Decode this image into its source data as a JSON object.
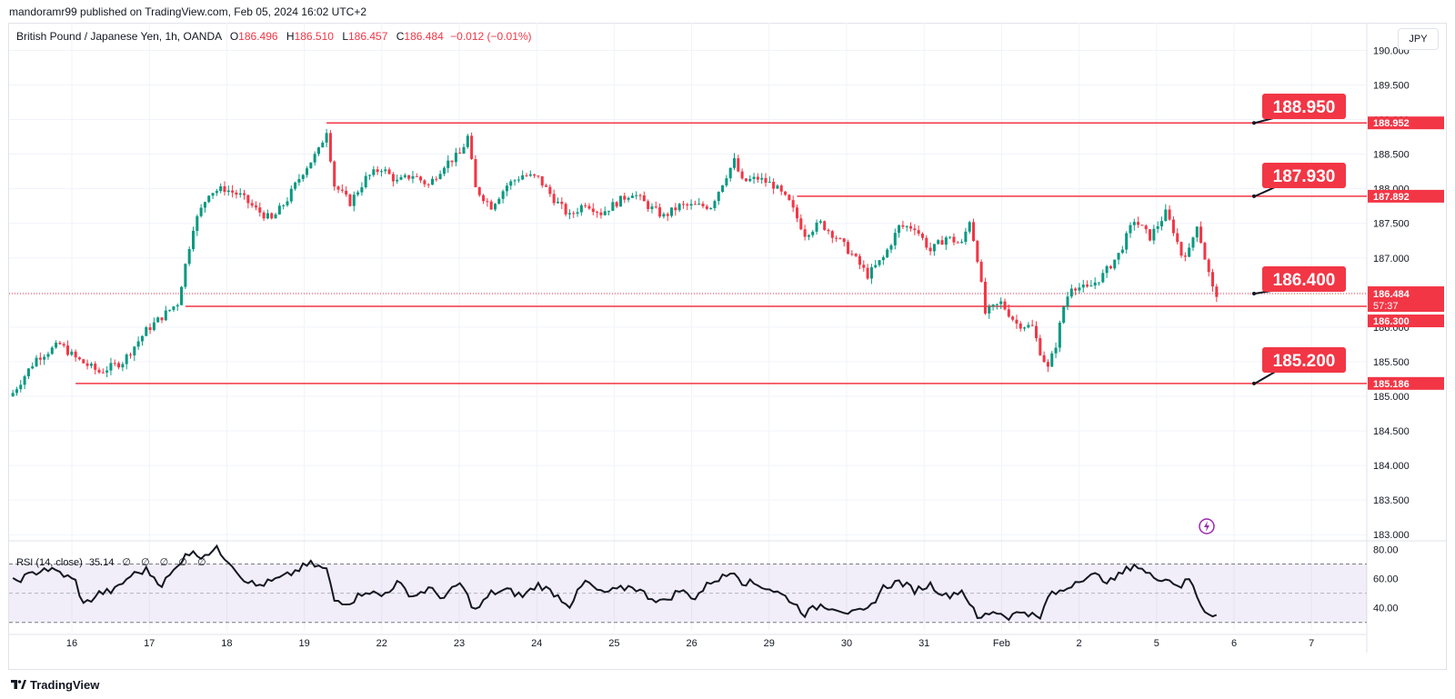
{
  "header": {
    "published_text": "mandoramr99 published on TradingView.com, Feb 05, 2024 16:02 UTC+2"
  },
  "legend": {
    "symbol": "British Pound / Japanese Yen, 1h, OANDA",
    "o_label": "O",
    "o_value": "186.496",
    "h_label": "H",
    "h_value": "186.510",
    "l_label": "L",
    "l_value": "186.457",
    "c_label": "C",
    "c_value": "186.484",
    "change": "−0.012 (−0.01%)"
  },
  "currency_button": "JPY",
  "rsi": {
    "label": "RSI (14, close)",
    "value": "35.14",
    "placeholders": "∅ ∅ ∅ ∅ ∅"
  },
  "footer": {
    "brand": "TradingView"
  },
  "colors": {
    "up": "#089981",
    "down": "#f23645",
    "level": "#f23645",
    "rsi_line": "#131722",
    "rsi_band": "#7e57c2",
    "grid": "#f0f3fa"
  },
  "chart_data": {
    "type": "candlestick",
    "ylim": [
      182.95,
      190.4
    ],
    "y_ticks": [
      "190.000",
      "189.500",
      "189.000",
      "188.500",
      "188.000",
      "187.500",
      "187.000",
      "186.500",
      "186.000",
      "185.500",
      "185.000",
      "184.500",
      "184.000",
      "183.500",
      "183.000"
    ],
    "x_ticks": [
      "16",
      "17",
      "18",
      "19",
      "22",
      "23",
      "24",
      "25",
      "26",
      "29",
      "30",
      "31",
      "Feb",
      "2",
      "5",
      "6",
      "7"
    ],
    "price_labels": {
      "line_1": "188.952",
      "line_2": "187.892",
      "current": "186.484",
      "countdown": "57:37",
      "line_3": "186.300",
      "line_4": "185.186"
    },
    "annotations": [
      "188.950",
      "187.930",
      "186.400",
      "185.200"
    ],
    "close_path": [
      [
        0,
        185.05
      ],
      [
        6,
        185.55
      ],
      [
        12,
        185.75
      ],
      [
        16,
        185.55
      ],
      [
        22,
        185.35
      ],
      [
        28,
        185.5
      ],
      [
        34,
        185.95
      ],
      [
        38,
        186.15
      ],
      [
        42,
        186.35
      ],
      [
        46,
        187.45
      ],
      [
        50,
        187.95
      ],
      [
        54,
        188.0
      ],
      [
        58,
        187.9
      ],
      [
        62,
        187.7
      ],
      [
        66,
        187.55
      ],
      [
        70,
        187.85
      ],
      [
        74,
        188.25
      ],
      [
        78,
        188.55
      ],
      [
        80,
        188.85
      ],
      [
        82,
        188.05
      ],
      [
        86,
        187.8
      ],
      [
        90,
        188.15
      ],
      [
        94,
        188.3
      ],
      [
        98,
        188.1
      ],
      [
        102,
        188.2
      ],
      [
        106,
        188.05
      ],
      [
        110,
        188.35
      ],
      [
        114,
        188.5
      ],
      [
        116,
        188.75
      ],
      [
        118,
        188.0
      ],
      [
        122,
        187.75
      ],
      [
        126,
        188.05
      ],
      [
        130,
        188.2
      ],
      [
        134,
        188.15
      ],
      [
        138,
        187.85
      ],
      [
        142,
        187.6
      ],
      [
        146,
        187.8
      ],
      [
        150,
        187.65
      ],
      [
        154,
        187.8
      ],
      [
        158,
        187.95
      ],
      [
        162,
        187.75
      ],
      [
        166,
        187.6
      ],
      [
        170,
        187.75
      ],
      [
        174,
        187.75
      ],
      [
        178,
        187.75
      ],
      [
        182,
        188.2
      ],
      [
        184,
        188.4
      ],
      [
        186,
        188.1
      ],
      [
        190,
        188.15
      ],
      [
        194,
        188.05
      ],
      [
        198,
        187.8
      ],
      [
        202,
        187.35
      ],
      [
        206,
        187.5
      ],
      [
        210,
        187.3
      ],
      [
        214,
        187.05
      ],
      [
        218,
        186.75
      ],
      [
        222,
        187.0
      ],
      [
        226,
        187.45
      ],
      [
        230,
        187.45
      ],
      [
        234,
        187.1
      ],
      [
        238,
        187.3
      ],
      [
        242,
        187.2
      ],
      [
        244,
        187.55
      ],
      [
        246,
        187.0
      ],
      [
        248,
        186.2
      ],
      [
        252,
        186.35
      ],
      [
        256,
        186.05
      ],
      [
        260,
        186.0
      ],
      [
        262,
        185.65
      ],
      [
        264,
        185.4
      ],
      [
        266,
        185.75
      ],
      [
        268,
        186.3
      ],
      [
        270,
        186.6
      ],
      [
        274,
        186.55
      ],
      [
        278,
        186.75
      ],
      [
        282,
        187.05
      ],
      [
        286,
        187.55
      ],
      [
        290,
        187.3
      ],
      [
        294,
        187.65
      ],
      [
        296,
        187.4
      ],
      [
        298,
        187.05
      ],
      [
        300,
        187.1
      ],
      [
        302,
        187.5
      ],
      [
        304,
        187.0
      ],
      [
        306,
        186.55
      ],
      [
        307,
        186.484
      ]
    ],
    "levels": [
      {
        "value": 188.952,
        "from": 80
      },
      {
        "value": 187.892,
        "from": 200
      },
      {
        "value": 186.3,
        "from": 44
      },
      {
        "value": 185.186,
        "from": 16
      }
    ],
    "current": 186.484,
    "rsi_ylim": [
      28,
      84
    ],
    "rsi_ticks": [
      "80.00",
      "60.00",
      "40.00"
    ],
    "rsi_band": [
      30,
      70
    ],
    "rsi_mid": 50,
    "rsi_points": [
      [
        0,
        58
      ],
      [
        4,
        62
      ],
      [
        8,
        67
      ],
      [
        12,
        64
      ],
      [
        16,
        58
      ],
      [
        18,
        42
      ],
      [
        22,
        50
      ],
      [
        26,
        52
      ],
      [
        30,
        62
      ],
      [
        34,
        66
      ],
      [
        38,
        56
      ],
      [
        42,
        68
      ],
      [
        44,
        78
      ],
      [
        48,
        76
      ],
      [
        52,
        80
      ],
      [
        56,
        70
      ],
      [
        58,
        62
      ],
      [
        62,
        55
      ],
      [
        66,
        58
      ],
      [
        70,
        62
      ],
      [
        74,
        68
      ],
      [
        76,
        70
      ],
      [
        80,
        66
      ],
      [
        82,
        45
      ],
      [
        86,
        44
      ],
      [
        90,
        52
      ],
      [
        94,
        48
      ],
      [
        98,
        57
      ],
      [
        102,
        48
      ],
      [
        106,
        53
      ],
      [
        110,
        47
      ],
      [
        114,
        57
      ],
      [
        118,
        38
      ],
      [
        122,
        50
      ],
      [
        126,
        52
      ],
      [
        130,
        48
      ],
      [
        134,
        56
      ],
      [
        138,
        50
      ],
      [
        142,
        42
      ],
      [
        146,
        58
      ],
      [
        150,
        50
      ],
      [
        154,
        52
      ],
      [
        158,
        55
      ],
      [
        162,
        48
      ],
      [
        166,
        44
      ],
      [
        170,
        52
      ],
      [
        174,
        47
      ],
      [
        178,
        58
      ],
      [
        182,
        62
      ],
      [
        184,
        66
      ],
      [
        186,
        58
      ],
      [
        190,
        56
      ],
      [
        194,
        52
      ],
      [
        198,
        46
      ],
      [
        202,
        36
      ],
      [
        206,
        42
      ],
      [
        210,
        40
      ],
      [
        214,
        36
      ],
      [
        218,
        38
      ],
      [
        222,
        54
      ],
      [
        226,
        58
      ],
      [
        230,
        52
      ],
      [
        234,
        56
      ],
      [
        238,
        48
      ],
      [
        242,
        52
      ],
      [
        244,
        44
      ],
      [
        246,
        32
      ],
      [
        250,
        38
      ],
      [
        254,
        34
      ],
      [
        258,
        38
      ],
      [
        262,
        32
      ],
      [
        264,
        48
      ],
      [
        268,
        52
      ],
      [
        272,
        60
      ],
      [
        276,
        62
      ],
      [
        280,
        58
      ],
      [
        284,
        66
      ],
      [
        286,
        70
      ],
      [
        290,
        62
      ],
      [
        294,
        60
      ],
      [
        298,
        55
      ],
      [
        300,
        60
      ],
      [
        302,
        48
      ],
      [
        304,
        38
      ],
      [
        307,
        35.14
      ]
    ]
  }
}
